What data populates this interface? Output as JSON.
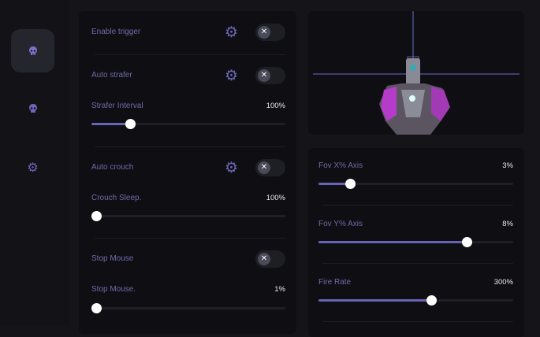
{
  "colors": {
    "accent": "#6a63b5",
    "label": "#6f6aa8",
    "panel": "#0f0f13"
  },
  "sidebar": {
    "items": [
      {
        "icon": "skull-icon",
        "active": true
      },
      {
        "icon": "skull-icon",
        "active": false
      },
      {
        "icon": "gear-icon",
        "active": false
      }
    ]
  },
  "left": {
    "enable_trigger": {
      "label": "Enable trigger",
      "on": false
    },
    "auto_strafer": {
      "label": "Auto strafer",
      "on": false
    },
    "strafer_interval": {
      "label": "Strafer Interval",
      "value": "100%",
      "fill": 0.2
    },
    "auto_crouch": {
      "label": "Auto crouch",
      "on": false
    },
    "crouch_sleep": {
      "label": "Crouch Sleep.",
      "value": "100%",
      "fill": 0
    },
    "stop_mouse": {
      "label": "Stop Mouse",
      "on": false
    },
    "stop_mouse_slider": {
      "label": "Stop Mouse.",
      "value": "1%",
      "fill": 0
    }
  },
  "right": {
    "fov_x": {
      "label": "Fov X% Axis",
      "value": "3%",
      "fill": 0.16
    },
    "fov_y": {
      "label": "Fov Y% Axis",
      "value": "8%",
      "fill": 0.76
    },
    "fire_rate": {
      "label": "Fire Rate",
      "value": "300%",
      "fill": 0.58
    }
  },
  "toggle_glyph": "✕"
}
